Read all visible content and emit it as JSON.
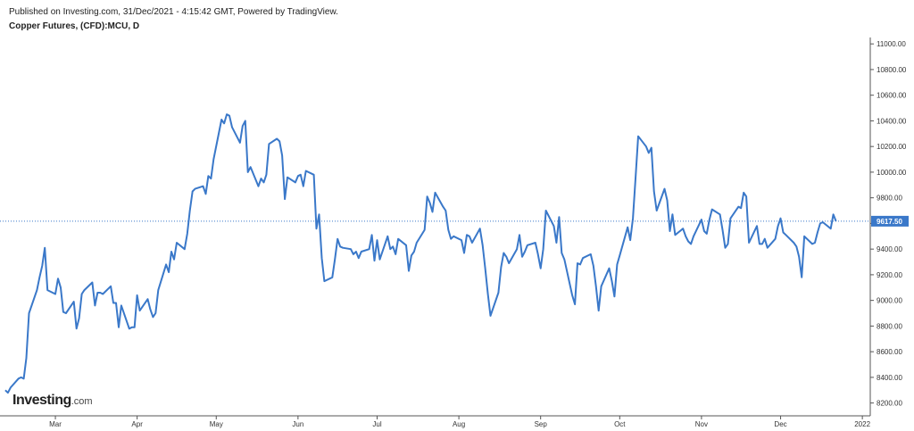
{
  "header": {
    "published": "Published on Investing.com, 31/Dec/2021 - 4:15:42 GMT, Powered by TradingView.",
    "title": "Copper Futures, (CFD):MCU, D"
  },
  "logo": {
    "name": "Investing",
    "suffix": ".com"
  },
  "colors": {
    "line": "#3a78c9",
    "axis": "#555555",
    "price_tag": "#3a78c9",
    "background": "#ffffff"
  },
  "chart_data": {
    "type": "line",
    "title": "Copper Futures, (CFD):MCU, D",
    "ylim": [
      8100,
      11050
    ],
    "y_ticks": [
      8200,
      8400,
      8600,
      8800,
      9000,
      9200,
      9400,
      9600,
      9800,
      10000,
      10200,
      10400,
      10600,
      10800,
      11000
    ],
    "y_tick_labels": [
      "8200.00",
      "8400.00",
      "8600.00",
      "8800.00",
      "9000.00",
      "9200.00",
      "9400.00",
      "9600.00",
      "9800.00",
      "10000.00",
      "10200.00",
      "10400.00",
      "10600.00",
      "10800.00",
      "11000.00"
    ],
    "x_range": [
      "2021-02-08",
      "2022-01-04"
    ],
    "x_ticks": [
      {
        "date": "2021-03-01",
        "label": "Mar"
      },
      {
        "date": "2021-04-01",
        "label": "Apr"
      },
      {
        "date": "2021-05-01",
        "label": "May"
      },
      {
        "date": "2021-06-01",
        "label": "Jun"
      },
      {
        "date": "2021-07-01",
        "label": "Jul"
      },
      {
        "date": "2021-08-01",
        "label": "Aug"
      },
      {
        "date": "2021-09-01",
        "label": "Sep"
      },
      {
        "date": "2021-10-01",
        "label": "Oct"
      },
      {
        "date": "2021-11-01",
        "label": "Nov"
      },
      {
        "date": "2021-12-01",
        "label": "Dec"
      },
      {
        "date": "2022-01-01",
        "label": "2022"
      }
    ],
    "last_price": 9617.5,
    "last_price_label": "9617.50",
    "series": [
      {
        "points": [
          [
            "2021-02-10",
            8300
          ],
          [
            "2021-02-11",
            8280
          ],
          [
            "2021-02-12",
            8320
          ],
          [
            "2021-02-15",
            8390
          ],
          [
            "2021-02-16",
            8400
          ],
          [
            "2021-02-17",
            8390
          ],
          [
            "2021-02-18",
            8550
          ],
          [
            "2021-02-19",
            8900
          ],
          [
            "2021-02-22",
            9080
          ],
          [
            "2021-02-23",
            9180
          ],
          [
            "2021-02-24",
            9270
          ],
          [
            "2021-02-25",
            9410
          ],
          [
            "2021-02-26",
            9080
          ],
          [
            "2021-03-01",
            9050
          ],
          [
            "2021-03-02",
            9170
          ],
          [
            "2021-03-03",
            9100
          ],
          [
            "2021-03-04",
            8910
          ],
          [
            "2021-03-05",
            8900
          ],
          [
            "2021-03-08",
            8990
          ],
          [
            "2021-03-09",
            8780
          ],
          [
            "2021-03-10",
            8860
          ],
          [
            "2021-03-11",
            9050
          ],
          [
            "2021-03-12",
            9080
          ],
          [
            "2021-03-15",
            9140
          ],
          [
            "2021-03-16",
            8960
          ],
          [
            "2021-03-17",
            9060
          ],
          [
            "2021-03-18",
            9060
          ],
          [
            "2021-03-19",
            9050
          ],
          [
            "2021-03-22",
            9110
          ],
          [
            "2021-03-23",
            8980
          ],
          [
            "2021-03-24",
            8980
          ],
          [
            "2021-03-25",
            8790
          ],
          [
            "2021-03-26",
            8960
          ],
          [
            "2021-03-29",
            8780
          ],
          [
            "2021-03-30",
            8790
          ],
          [
            "2021-03-31",
            8790
          ],
          [
            "2021-04-01",
            9040
          ],
          [
            "2021-04-02",
            8920
          ],
          [
            "2021-04-05",
            9010
          ],
          [
            "2021-04-06",
            8930
          ],
          [
            "2021-04-07",
            8870
          ],
          [
            "2021-04-08",
            8900
          ],
          [
            "2021-04-09",
            9080
          ],
          [
            "2021-04-12",
            9280
          ],
          [
            "2021-04-13",
            9220
          ],
          [
            "2021-04-14",
            9380
          ],
          [
            "2021-04-15",
            9320
          ],
          [
            "2021-04-16",
            9450
          ],
          [
            "2021-04-19",
            9400
          ],
          [
            "2021-04-20",
            9520
          ],
          [
            "2021-04-21",
            9700
          ],
          [
            "2021-04-22",
            9850
          ],
          [
            "2021-04-23",
            9870
          ],
          [
            "2021-04-26",
            9890
          ],
          [
            "2021-04-27",
            9830
          ],
          [
            "2021-04-28",
            9970
          ],
          [
            "2021-04-29",
            9950
          ],
          [
            "2021-04-30",
            10100
          ],
          [
            "2021-05-03",
            10410
          ],
          [
            "2021-05-04",
            10380
          ],
          [
            "2021-05-05",
            10450
          ],
          [
            "2021-05-06",
            10440
          ],
          [
            "2021-05-07",
            10350
          ],
          [
            "2021-05-10",
            10230
          ],
          [
            "2021-05-11",
            10360
          ],
          [
            "2021-05-12",
            10400
          ],
          [
            "2021-05-13",
            10000
          ],
          [
            "2021-05-14",
            10040
          ],
          [
            "2021-05-17",
            9890
          ],
          [
            "2021-05-18",
            9950
          ],
          [
            "2021-05-19",
            9920
          ],
          [
            "2021-05-20",
            9980
          ],
          [
            "2021-05-21",
            10220
          ],
          [
            "2021-05-24",
            10260
          ],
          [
            "2021-05-25",
            10240
          ],
          [
            "2021-05-26",
            10130
          ],
          [
            "2021-05-27",
            9790
          ],
          [
            "2021-05-28",
            9960
          ],
          [
            "2021-05-31",
            9920
          ],
          [
            "2021-06-01",
            9970
          ],
          [
            "2021-06-02",
            9980
          ],
          [
            "2021-06-03",
            9890
          ],
          [
            "2021-06-04",
            10010
          ],
          [
            "2021-06-07",
            9980
          ],
          [
            "2021-06-08",
            9560
          ],
          [
            "2021-06-09",
            9670
          ],
          [
            "2021-06-10",
            9330
          ],
          [
            "2021-06-11",
            9150
          ],
          [
            "2021-06-14",
            9180
          ],
          [
            "2021-06-15",
            9320
          ],
          [
            "2021-06-16",
            9480
          ],
          [
            "2021-06-17",
            9420
          ],
          [
            "2021-06-18",
            9410
          ],
          [
            "2021-06-21",
            9400
          ],
          [
            "2021-06-22",
            9360
          ],
          [
            "2021-06-23",
            9380
          ],
          [
            "2021-06-24",
            9330
          ],
          [
            "2021-06-25",
            9380
          ],
          [
            "2021-06-28",
            9400
          ],
          [
            "2021-06-29",
            9510
          ],
          [
            "2021-06-30",
            9310
          ],
          [
            "2021-07-01",
            9470
          ],
          [
            "2021-07-02",
            9320
          ],
          [
            "2021-07-05",
            9500
          ],
          [
            "2021-07-06",
            9400
          ],
          [
            "2021-07-07",
            9420
          ],
          [
            "2021-07-08",
            9360
          ],
          [
            "2021-07-09",
            9480
          ],
          [
            "2021-07-12",
            9430
          ],
          [
            "2021-07-13",
            9230
          ],
          [
            "2021-07-14",
            9350
          ],
          [
            "2021-07-15",
            9380
          ],
          [
            "2021-07-16",
            9450
          ],
          [
            "2021-07-19",
            9550
          ],
          [
            "2021-07-20",
            9810
          ],
          [
            "2021-07-21",
            9760
          ],
          [
            "2021-07-22",
            9690
          ],
          [
            "2021-07-23",
            9840
          ],
          [
            "2021-07-26",
            9730
          ],
          [
            "2021-07-27",
            9700
          ],
          [
            "2021-07-28",
            9550
          ],
          [
            "2021-07-29",
            9480
          ],
          [
            "2021-07-30",
            9500
          ],
          [
            "2021-08-02",
            9470
          ],
          [
            "2021-08-03",
            9370
          ],
          [
            "2021-08-04",
            9510
          ],
          [
            "2021-08-05",
            9500
          ],
          [
            "2021-08-06",
            9450
          ],
          [
            "2021-08-09",
            9560
          ],
          [
            "2021-08-10",
            9430
          ],
          [
            "2021-08-11",
            9250
          ],
          [
            "2021-08-12",
            9050
          ],
          [
            "2021-08-13",
            8880
          ],
          [
            "2021-08-16",
            9060
          ],
          [
            "2021-08-17",
            9260
          ],
          [
            "2021-08-18",
            9370
          ],
          [
            "2021-08-19",
            9340
          ],
          [
            "2021-08-20",
            9290
          ],
          [
            "2021-08-23",
            9400
          ],
          [
            "2021-08-24",
            9510
          ],
          [
            "2021-08-25",
            9340
          ],
          [
            "2021-08-26",
            9380
          ],
          [
            "2021-08-27",
            9430
          ],
          [
            "2021-08-30",
            9450
          ],
          [
            "2021-08-31",
            9360
          ],
          [
            "2021-09-01",
            9250
          ],
          [
            "2021-09-02",
            9400
          ],
          [
            "2021-09-03",
            9700
          ],
          [
            "2021-09-06",
            9580
          ],
          [
            "2021-09-07",
            9450
          ],
          [
            "2021-09-08",
            9650
          ],
          [
            "2021-09-09",
            9370
          ],
          [
            "2021-09-10",
            9320
          ],
          [
            "2021-09-13",
            9040
          ],
          [
            "2021-09-14",
            8970
          ],
          [
            "2021-09-15",
            9290
          ],
          [
            "2021-09-16",
            9280
          ],
          [
            "2021-09-17",
            9330
          ],
          [
            "2021-09-20",
            9360
          ],
          [
            "2021-09-21",
            9270
          ],
          [
            "2021-09-22",
            9110
          ],
          [
            "2021-09-23",
            8920
          ],
          [
            "2021-09-24",
            9110
          ],
          [
            "2021-09-27",
            9250
          ],
          [
            "2021-09-28",
            9150
          ],
          [
            "2021-09-29",
            9030
          ],
          [
            "2021-09-30",
            9280
          ],
          [
            "2021-10-01",
            9350
          ],
          [
            "2021-10-04",
            9570
          ],
          [
            "2021-10-05",
            9470
          ],
          [
            "2021-10-06",
            9640
          ],
          [
            "2021-10-07",
            9950
          ],
          [
            "2021-10-08",
            10280
          ],
          [
            "2021-10-11",
            10200
          ],
          [
            "2021-10-12",
            10150
          ],
          [
            "2021-10-13",
            10190
          ],
          [
            "2021-10-14",
            9850
          ],
          [
            "2021-10-15",
            9700
          ],
          [
            "2021-10-18",
            9870
          ],
          [
            "2021-10-19",
            9780
          ],
          [
            "2021-10-20",
            9540
          ],
          [
            "2021-10-21",
            9670
          ],
          [
            "2021-10-22",
            9510
          ],
          [
            "2021-10-25",
            9560
          ],
          [
            "2021-10-26",
            9500
          ],
          [
            "2021-10-27",
            9460
          ],
          [
            "2021-10-28",
            9440
          ],
          [
            "2021-10-29",
            9500
          ],
          [
            "2021-11-01",
            9630
          ],
          [
            "2021-11-02",
            9540
          ],
          [
            "2021-11-03",
            9520
          ],
          [
            "2021-11-04",
            9630
          ],
          [
            "2021-11-05",
            9710
          ],
          [
            "2021-11-08",
            9670
          ],
          [
            "2021-11-09",
            9550
          ],
          [
            "2021-11-10",
            9410
          ],
          [
            "2021-11-11",
            9440
          ],
          [
            "2021-11-12",
            9640
          ],
          [
            "2021-11-15",
            9730
          ],
          [
            "2021-11-16",
            9720
          ],
          [
            "2021-11-17",
            9840
          ],
          [
            "2021-11-18",
            9810
          ],
          [
            "2021-11-19",
            9450
          ],
          [
            "2021-11-22",
            9580
          ],
          [
            "2021-11-23",
            9440
          ],
          [
            "2021-11-24",
            9440
          ],
          [
            "2021-11-25",
            9480
          ],
          [
            "2021-11-26",
            9410
          ],
          [
            "2021-11-29",
            9480
          ],
          [
            "2021-11-30",
            9580
          ],
          [
            "2021-12-01",
            9640
          ],
          [
            "2021-12-02",
            9530
          ],
          [
            "2021-12-03",
            9510
          ],
          [
            "2021-12-06",
            9450
          ],
          [
            "2021-12-07",
            9420
          ],
          [
            "2021-12-08",
            9340
          ],
          [
            "2021-12-09",
            9180
          ],
          [
            "2021-12-10",
            9500
          ],
          [
            "2021-12-13",
            9440
          ],
          [
            "2021-12-14",
            9450
          ],
          [
            "2021-12-15",
            9530
          ],
          [
            "2021-12-16",
            9600
          ],
          [
            "2021-12-17",
            9610
          ],
          [
            "2021-12-20",
            9560
          ],
          [
            "2021-12-21",
            9670
          ],
          [
            "2021-12-22",
            9617.5
          ]
        ]
      }
    ]
  }
}
